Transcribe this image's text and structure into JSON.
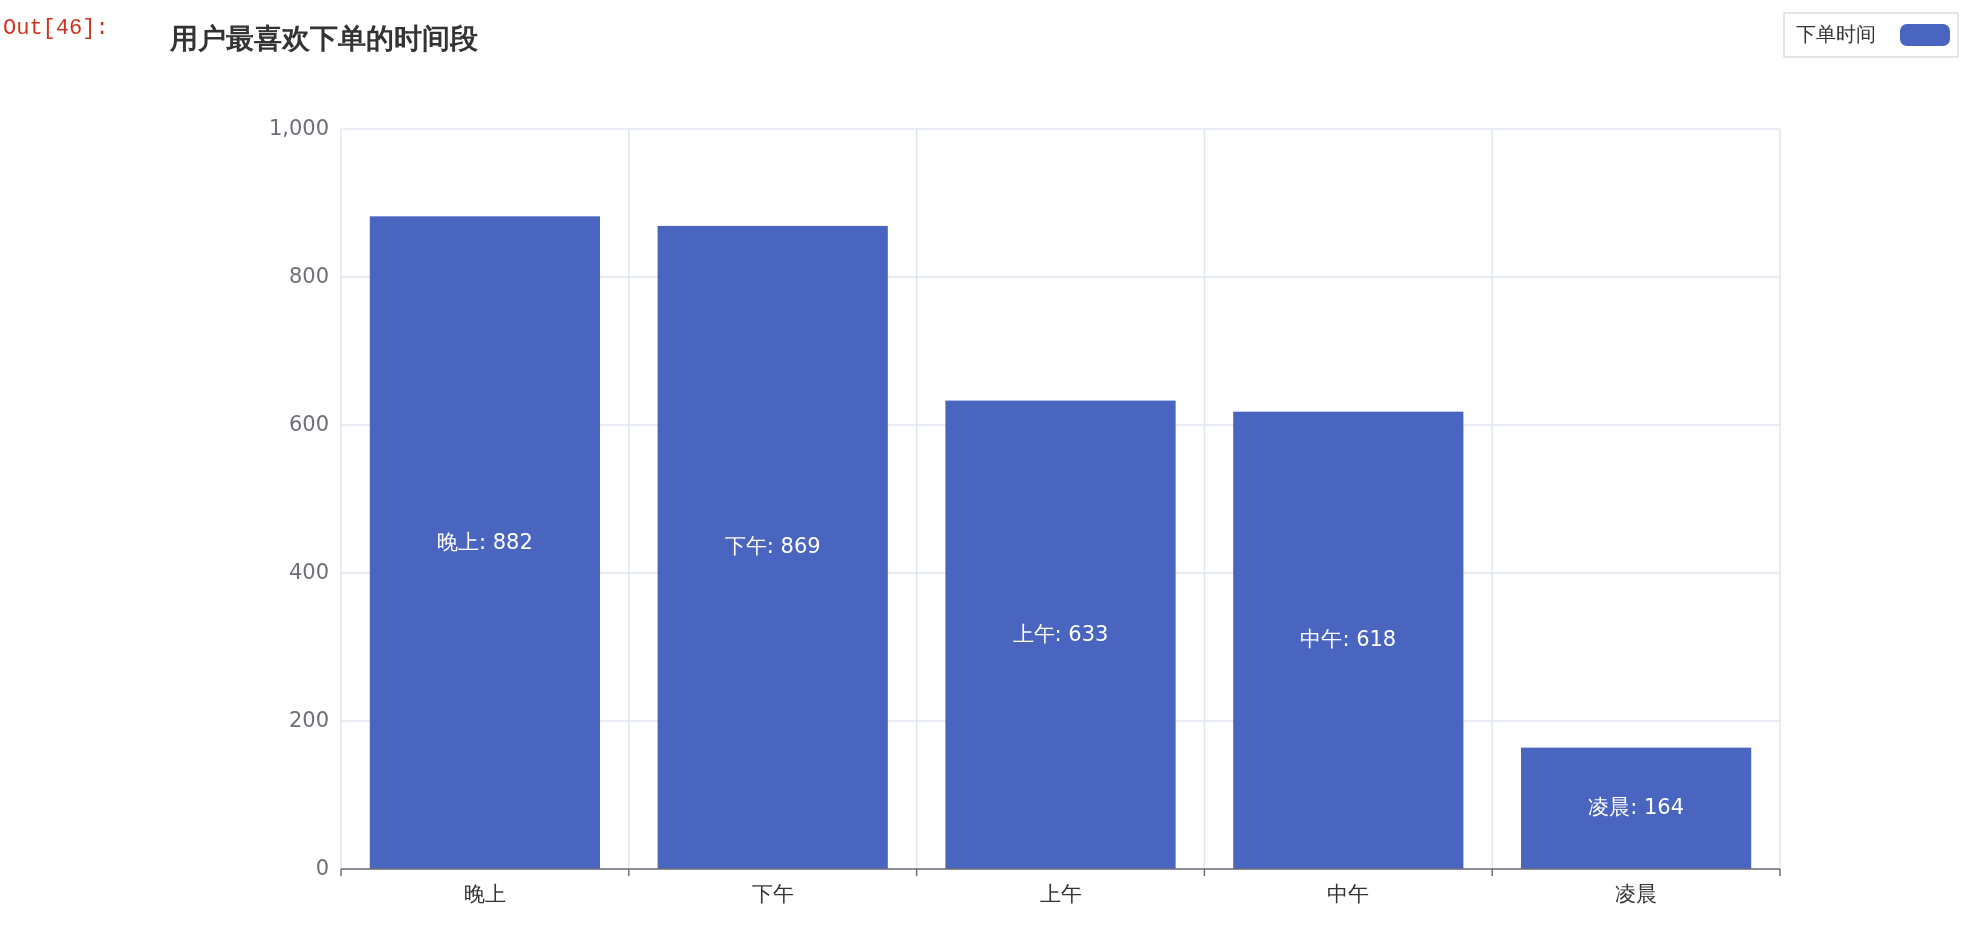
{
  "chart_data": {
    "type": "bar",
    "title": "用户最喜欢下单的时间段",
    "annotations": [
      "Out[46]:"
    ],
    "categories": [
      "晚上",
      "下午",
      "上午",
      "中午",
      "凌晨"
    ],
    "series": [
      {
        "name": "下单时间",
        "color": "#4a65bf",
        "values": [
          882,
          869,
          633,
          618,
          164
        ],
        "value_labels": [
          "晚上: 882",
          "下午: 869",
          "上午: 633",
          "中午: 618",
          "凌晨: 164"
        ]
      }
    ],
    "ylim": [
      0,
      1000
    ],
    "yticks": [
      0,
      200,
      400,
      600,
      800,
      {
        "value": 1000,
        "label": "1,000"
      }
    ],
    "grid": true,
    "legend": "top right"
  }
}
